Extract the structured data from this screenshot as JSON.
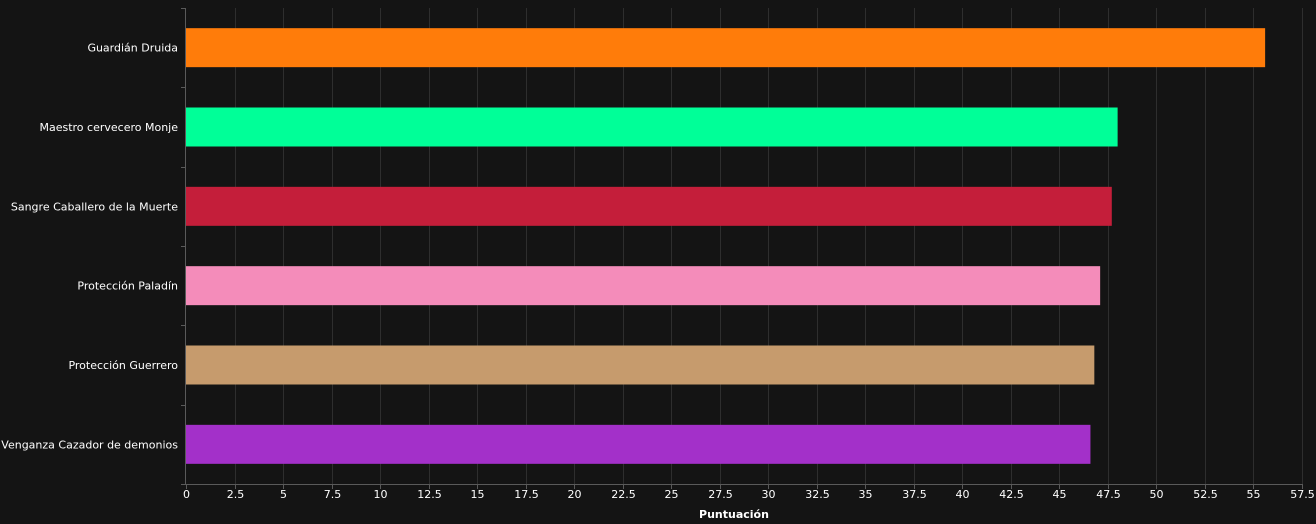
{
  "chart_data": {
    "type": "bar",
    "orientation": "horizontal",
    "categories": [
      "Guardián Druida",
      "Maestro cervecero Monje",
      "Sangre Caballero de la Muerte",
      "Protección Paladín",
      "Protección Guerrero",
      "Venganza Cazador de demonios"
    ],
    "values": [
      55.6,
      48.0,
      47.7,
      47.1,
      46.8,
      46.6
    ],
    "colors": [
      "#ff7c0a",
      "#00ff98",
      "#c41e3a",
      "#f48cba",
      "#c69b6d",
      "#a330c9"
    ],
    "xlabel": "Puntuación",
    "ylabel": "",
    "xlim": [
      0,
      57.5
    ],
    "x_ticks": [
      0,
      2.5,
      5,
      7.5,
      10,
      12.5,
      15,
      17.5,
      20,
      22.5,
      25,
      27.5,
      30,
      32.5,
      35,
      37.5,
      40,
      42.5,
      45,
      47.5,
      50,
      52.5,
      55,
      57.5
    ],
    "x_tick_labels": [
      "0",
      "2.5",
      "5",
      "7.5",
      "10",
      "12.5",
      "15",
      "17.5",
      "20",
      "22.5",
      "25",
      "27.5",
      "30",
      "32.5",
      "35",
      "37.5",
      "40",
      "42.5",
      "45",
      "47.5",
      "50",
      "52.5",
      "55",
      "57.5"
    ],
    "grid": true,
    "legend": "none"
  },
  "theme": {
    "background": "#141414",
    "text": "#ffffff",
    "grid": "#2e2e2e",
    "axis": "#5a5a5a"
  }
}
